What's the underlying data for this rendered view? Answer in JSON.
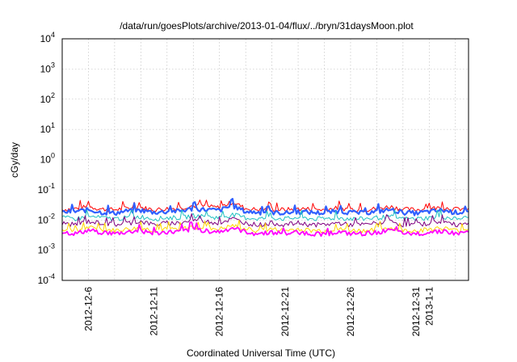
{
  "chart_data": {
    "type": "line",
    "title": "/data/run/goesPlots/archive/2013-01-04/flux/../bryn/31daysMoon.plot",
    "xlabel": "Coordinated Universal Time (UTC)",
    "ylabel": "cGy/day",
    "yscale": "log",
    "ylim": [
      0.0001,
      10000
    ],
    "xlim": [
      "2012-12-04",
      "2013-01-04"
    ],
    "grid": true,
    "yticks": [
      {
        "value": 0.0001,
        "base": "10",
        "exp": "-4"
      },
      {
        "value": 0.001,
        "base": "10",
        "exp": "-3"
      },
      {
        "value": 0.01,
        "base": "10",
        "exp": "-2"
      },
      {
        "value": 0.1,
        "base": "10",
        "exp": "-1"
      },
      {
        "value": 1,
        "base": "10",
        "exp": "0"
      },
      {
        "value": 10,
        "base": "10",
        "exp": "1"
      },
      {
        "value": 100,
        "base": "10",
        "exp": "2"
      },
      {
        "value": 1000,
        "base": "10",
        "exp": "3"
      },
      {
        "value": 10000,
        "base": "10",
        "exp": "4"
      }
    ],
    "xticks": [
      {
        "date": "2012-12-06",
        "label": "2012-12-6"
      },
      {
        "date": "2012-12-11",
        "label": "2012-12-11"
      },
      {
        "date": "2012-12-16",
        "label": "2012-12-16"
      },
      {
        "date": "2012-12-21",
        "label": "2012-12-21"
      },
      {
        "date": "2012-12-26",
        "label": "2012-12-26"
      },
      {
        "date": "2012-12-31",
        "label": "2012-12-31"
      },
      {
        "date": "2013-01-01",
        "label": "2013-1-1"
      }
    ],
    "x": [
      "2012-12-04",
      "2012-12-05",
      "2012-12-06",
      "2012-12-07",
      "2012-12-08",
      "2012-12-09",
      "2012-12-10",
      "2012-12-11",
      "2012-12-12",
      "2012-12-13",
      "2012-12-14",
      "2012-12-15",
      "2012-12-16",
      "2012-12-17",
      "2012-12-18",
      "2012-12-19",
      "2012-12-20",
      "2012-12-21",
      "2012-12-22",
      "2012-12-23",
      "2012-12-24",
      "2012-12-25",
      "2012-12-26",
      "2012-12-27",
      "2012-12-28",
      "2012-12-29",
      "2012-12-30",
      "2012-12-31",
      "2013-01-01",
      "2013-01-02",
      "2013-01-03",
      "2013-01-04"
    ],
    "series": [
      {
        "color": "#ff0000",
        "width": 1.0,
        "values": [
          0.022,
          0.024,
          0.028,
          0.023,
          0.022,
          0.025,
          0.026,
          0.022,
          0.024,
          0.025,
          0.03,
          0.028,
          0.026,
          0.04,
          0.024,
          0.022,
          0.023,
          0.022,
          0.024,
          0.023,
          0.022,
          0.025,
          0.023,
          0.022,
          0.024,
          0.028,
          0.023,
          0.022,
          0.024,
          0.026,
          0.023,
          0.024
        ]
      },
      {
        "color": "#3060ff",
        "width": 2.2,
        "values": [
          0.018,
          0.019,
          0.022,
          0.018,
          0.017,
          0.02,
          0.021,
          0.018,
          0.019,
          0.02,
          0.024,
          0.022,
          0.021,
          0.03,
          0.019,
          0.018,
          0.018,
          0.017,
          0.019,
          0.018,
          0.017,
          0.02,
          0.018,
          0.017,
          0.019,
          0.022,
          0.018,
          0.017,
          0.019,
          0.021,
          0.018,
          0.019
        ]
      },
      {
        "color": "#20c0c0",
        "width": 1.0,
        "values": [
          0.012,
          0.011,
          0.013,
          0.012,
          0.011,
          0.012,
          0.013,
          0.011,
          0.012,
          0.012,
          0.014,
          0.013,
          0.012,
          0.015,
          0.012,
          0.011,
          0.012,
          0.011,
          0.012,
          0.011,
          0.011,
          0.012,
          0.011,
          0.011,
          0.012,
          0.013,
          0.011,
          0.011,
          0.012,
          0.013,
          0.011,
          0.012
        ]
      },
      {
        "color": "#800080",
        "width": 1.0,
        "values": [
          0.008,
          0.007,
          0.009,
          0.008,
          0.007,
          0.008,
          0.009,
          0.007,
          0.008,
          0.008,
          0.01,
          0.009,
          0.008,
          0.011,
          0.008,
          0.007,
          0.008,
          0.007,
          0.008,
          0.007,
          0.007,
          0.008,
          0.007,
          0.007,
          0.008,
          0.009,
          0.007,
          0.007,
          0.008,
          0.009,
          0.007,
          0.008
        ]
      },
      {
        "color": "#ffd700",
        "width": 1.0,
        "values": [
          0.005,
          0.0045,
          0.0055,
          0.005,
          0.0045,
          0.005,
          0.0055,
          0.0045,
          0.005,
          0.005,
          0.006,
          0.0055,
          0.005,
          0.0065,
          0.005,
          0.0045,
          0.005,
          0.0045,
          0.005,
          0.0045,
          0.0045,
          0.005,
          0.0045,
          0.0045,
          0.005,
          0.0055,
          0.0045,
          0.0045,
          0.005,
          0.0055,
          0.0045,
          0.005
        ]
      },
      {
        "color": "#ff00ff",
        "width": 1.8,
        "values": [
          0.004,
          0.0035,
          0.0045,
          0.004,
          0.0035,
          0.004,
          0.0045,
          0.0035,
          0.004,
          0.004,
          0.005,
          0.0045,
          0.004,
          0.0055,
          0.004,
          0.0035,
          0.004,
          0.0035,
          0.004,
          0.0035,
          0.0035,
          0.004,
          0.0035,
          0.0035,
          0.004,
          0.0045,
          0.0035,
          0.0035,
          0.004,
          0.0045,
          0.0035,
          0.004
        ]
      }
    ]
  }
}
